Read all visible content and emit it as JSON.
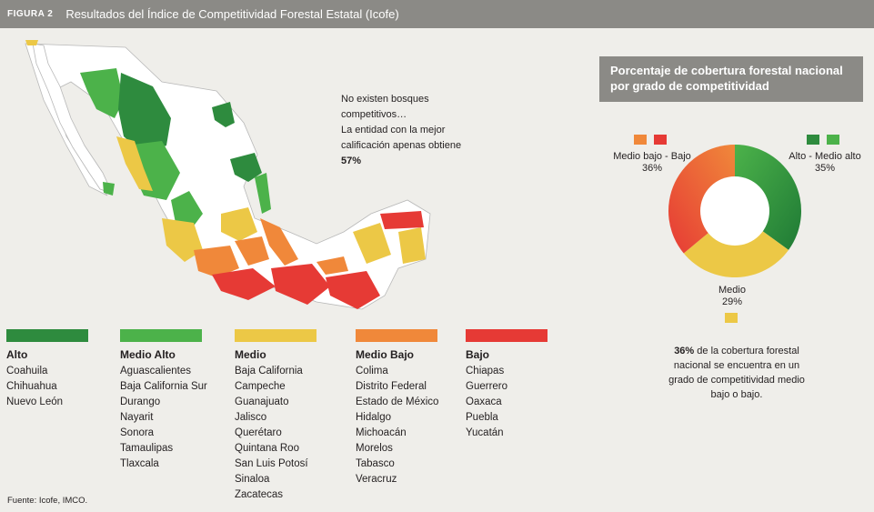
{
  "header": {
    "figure": "FIGURA 2",
    "title": "Resultados del Índice de Competitividad Forestal Estatal (Icofe)"
  },
  "note": {
    "line1": "No existen bosques",
    "line2": "competitivos…",
    "line3": "La entidad con la mejor",
    "line4": "calificación apenas obtiene",
    "value": "57%"
  },
  "legend": [
    {
      "name": "Alto",
      "color": "#2e8b3e",
      "states": [
        "Coahuila",
        "Chihuahua",
        "Nuevo León"
      ]
    },
    {
      "name": "Medio Alto",
      "color": "#4cb24a",
      "states": [
        "Aguascalientes",
        "Baja California Sur",
        "Durango",
        "Nayarit",
        "Sonora",
        "Tamaulipas",
        "Tlaxcala"
      ]
    },
    {
      "name": "Medio",
      "color": "#ecc846",
      "states": [
        "Baja California",
        "Campeche",
        "Guanajuato",
        "Jalisco",
        "Querétaro",
        "Quintana Roo",
        "San Luis Potosí",
        "Sinaloa",
        "Zacatecas"
      ]
    },
    {
      "name": "Medio Bajo",
      "color": "#f0883a",
      "states": [
        "Colima",
        "Distrito Federal",
        "Estado de México",
        "Hidalgo",
        "Michoacán",
        "Morelos",
        "Tabasco",
        "Veracruz"
      ]
    },
    {
      "name": "Bajo",
      "color": "#e63a35",
      "states": [
        "Chiapas",
        "Guerrero",
        "Oaxaca",
        "Puebla",
        "Yucatán"
      ]
    }
  ],
  "source": "Fuente: Icofe, IMCO.",
  "side": {
    "title_line1": "Porcentaje de cobertura forestal nacional",
    "title_line2": "por grado de competitividad",
    "summary_bold": "36%",
    "summary_rest": " de la cobertura forestal nacional se encuentra en un grado de competitividad medio bajo o bajo."
  },
  "chart_data": {
    "type": "pie",
    "title": "Porcentaje de cobertura forestal nacional por grado de competitividad",
    "categories": [
      "Alto - Medio alto",
      "Medio",
      "Medio bajo - Bajo"
    ],
    "values": [
      35,
      29,
      36
    ],
    "value_labels": [
      "35%",
      "29%",
      "36%"
    ],
    "colors": [
      [
        "#2e8b3e",
        "#4cb24a"
      ],
      [
        "#ecc846"
      ],
      [
        "#f0883a",
        "#e63a35"
      ]
    ],
    "donut": true
  }
}
